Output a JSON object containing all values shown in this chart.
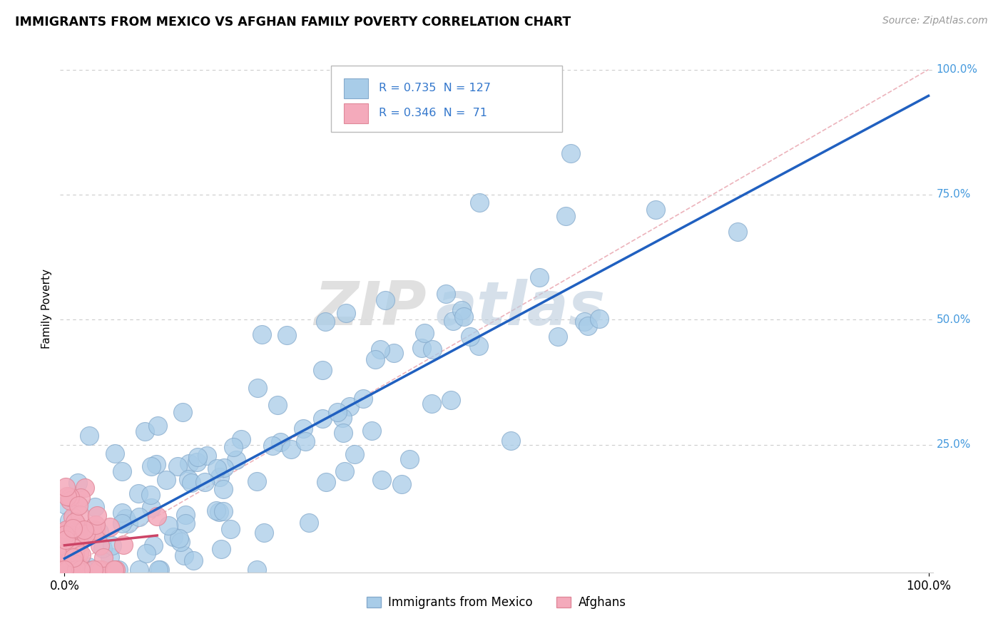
{
  "title": "IMMIGRANTS FROM MEXICO VS AFGHAN FAMILY POVERTY CORRELATION CHART",
  "source": "Source: ZipAtlas.com",
  "ylabel": "Family Poverty",
  "legend_mexico": "Immigrants from Mexico",
  "legend_afghans": "Afghans",
  "r_mexico": 0.735,
  "n_mexico": 127,
  "r_afghan": 0.346,
  "n_afghan": 71,
  "color_mexico": "#A8CCE8",
  "color_afghan": "#F4AABB",
  "color_mexico_edge": "#85AACC",
  "color_afghan_edge": "#E08899",
  "line_mexico": "#2060C0",
  "line_afghan": "#CC4466",
  "line_diag": "#E8A0AA",
  "label_color": "#4499DD",
  "watermark_zip": "ZIP",
  "watermark_atlas": "atlas",
  "ytick_labels": [
    "25.0%",
    "50.0%",
    "75.0%",
    "100.0%"
  ],
  "ytick_vals": [
    0.25,
    0.5,
    0.75,
    1.0
  ],
  "legend_box_text_color": "#3377CC"
}
